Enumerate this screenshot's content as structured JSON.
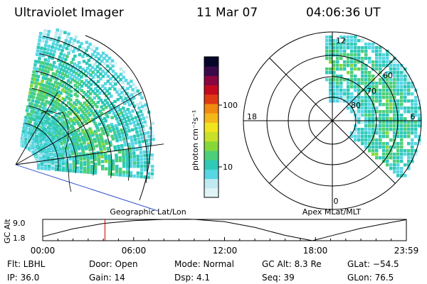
{
  "header": {
    "title": "Ultraviolet Imager",
    "date": "11 Mar 07",
    "time": "04:06:36 UT"
  },
  "colors": {
    "accent_blue": "#1a3cc8",
    "marker_red": "#cc0000",
    "scale": [
      "#e0f4f6",
      "#bfeaf0",
      "#57d6e4",
      "#2fc9b8",
      "#4ccf7a",
      "#86d839",
      "#c8e02a",
      "#f0e51e",
      "#f5b81a",
      "#f08a10",
      "#e03a14",
      "#c40a1e",
      "#8a0640",
      "#3a0a4a",
      "#06062a"
    ]
  },
  "left_panel": {
    "label": "Geographic Lat/Lon"
  },
  "colorbar": {
    "unit_label": "photon cm⁻²s⁻¹",
    "ticks": [
      "100",
      "10"
    ],
    "scale": "log"
  },
  "right_panel": {
    "label": "Apex MLat/MLT",
    "mlt_labels": [
      "12",
      "18",
      "6",
      "0"
    ],
    "lat_labels": [
      "60",
      "70",
      "80"
    ]
  },
  "altitude_strip": {
    "ylabel": "GC Alt",
    "yticks": [
      "9.0",
      "1.8"
    ],
    "xticks": [
      "00:00",
      "06:00",
      "12:00",
      "18:00",
      "23:59"
    ]
  },
  "chart_data": [
    {
      "type": "heatmap",
      "title": "",
      "xlabel": "Geographic Lat/Lon",
      "ylabel": "",
      "colorscale": "log",
      "colorbar_label": "photon cm⁻²s⁻¹",
      "colorbar_ticks": [
        10,
        100
      ]
    },
    {
      "type": "heatmap",
      "title": "",
      "xlabel": "Apex MLat/MLT",
      "ylabel": "",
      "mlt_ticks": [
        12,
        18,
        6,
        0
      ],
      "mlat_rings": [
        60,
        70,
        80
      ]
    },
    {
      "type": "line",
      "title": "",
      "xlabel": "",
      "ylabel": "GC Alt",
      "ylim": [
        1.8,
        9.0
      ],
      "xlim": [
        "00:00",
        "23:59"
      ],
      "x_hours": [
        0,
        2,
        4,
        6,
        8,
        9.5,
        10,
        12,
        14,
        16,
        17.8,
        19,
        21,
        23,
        24
      ],
      "y": [
        3.2,
        5.8,
        7.6,
        8.6,
        9.0,
        9.1,
        9.0,
        8.2,
        6.3,
        3.6,
        1.8,
        3.4,
        6.0,
        8.0,
        8.9
      ],
      "marker_time": "04:06:36"
    }
  ],
  "footer": {
    "flt": "Flt: LBHL",
    "ip": "IP: 36.0",
    "door": "Door: Open",
    "gain": "Gain: 14",
    "mode": "Mode: Normal",
    "dsp": "Dsp:    4.1",
    "gcalt": "GC Alt: 8.3 Re",
    "seq": "Seq: 39",
    "glat": "GLat: −54.5",
    "glon": "GLon:  76.5"
  }
}
